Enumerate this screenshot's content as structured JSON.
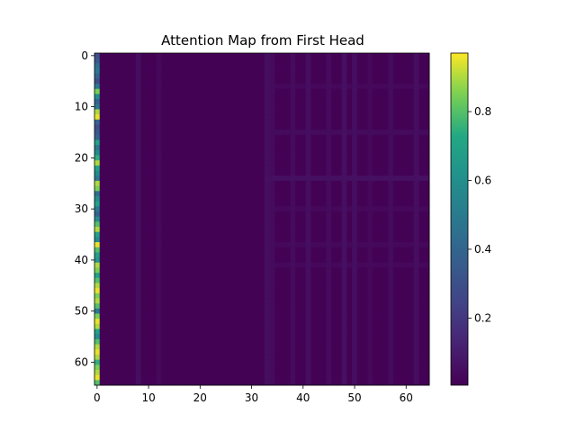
{
  "chart_data": {
    "type": "heatmap",
    "title": "Attention Map from First Head",
    "xlabel": "",
    "ylabel": "",
    "rows": 65,
    "cols": 65,
    "x_ticks": [
      0,
      10,
      20,
      30,
      40,
      50,
      60
    ],
    "y_ticks": [
      0,
      10,
      20,
      30,
      40,
      50,
      60
    ],
    "x_tick_labels": [
      "0",
      "10",
      "20",
      "30",
      "40",
      "50",
      "60"
    ],
    "y_tick_labels": [
      "0",
      "10",
      "20",
      "30",
      "40",
      "50",
      "60"
    ],
    "colormap": "viridis",
    "colorbar": {
      "range": [
        0.005,
        0.97
      ],
      "ticks": [
        0.2,
        0.4,
        0.6,
        0.8
      ],
      "tick_labels": [
        "0.2",
        "0.4",
        "0.6",
        "0.8"
      ]
    },
    "background_value": 0.01,
    "column0_values": [
      0.3,
      0.35,
      0.45,
      0.5,
      0.4,
      0.3,
      0.5,
      0.85,
      0.6,
      0.4,
      0.5,
      0.9,
      0.95,
      0.4,
      0.3,
      0.35,
      0.4,
      0.7,
      0.5,
      0.6,
      0.75,
      0.9,
      0.7,
      0.6,
      0.5,
      0.9,
      0.85,
      0.45,
      0.6,
      0.7,
      0.5,
      0.4,
      0.6,
      0.8,
      0.9,
      0.7,
      0.6,
      0.95,
      0.8,
      0.7,
      0.65,
      0.9,
      0.85,
      0.7,
      0.8,
      0.9,
      0.95,
      0.85,
      0.9,
      0.8,
      0.5,
      0.85,
      0.95,
      0.9,
      0.7,
      0.6,
      0.8,
      0.9,
      0.95,
      0.9,
      0.75,
      0.85,
      0.9,
      0.95,
      0.8
    ],
    "bright_columns": [
      {
        "col": 8,
        "value": 0.05
      },
      {
        "col": 12,
        "value": 0.03
      },
      {
        "col": 33,
        "value": 0.05
      },
      {
        "col": 34,
        "value": 0.04
      },
      {
        "col": 38,
        "value": 0.04
      },
      {
        "col": 41,
        "value": 0.05
      },
      {
        "col": 45,
        "value": 0.04
      },
      {
        "col": 48,
        "value": 0.06
      },
      {
        "col": 50,
        "value": 0.05
      },
      {
        "col": 53,
        "value": 0.03
      },
      {
        "col": 57,
        "value": 0.04
      },
      {
        "col": 62,
        "value": 0.05
      }
    ],
    "bright_rows": [
      {
        "row": 6,
        "value": 0.03
      },
      {
        "row": 15,
        "value": 0.04
      },
      {
        "row": 24,
        "value": 0.06
      },
      {
        "row": 30,
        "value": 0.03
      },
      {
        "row": 37,
        "value": 0.03
      },
      {
        "row": 41,
        "value": 0.03
      }
    ]
  }
}
